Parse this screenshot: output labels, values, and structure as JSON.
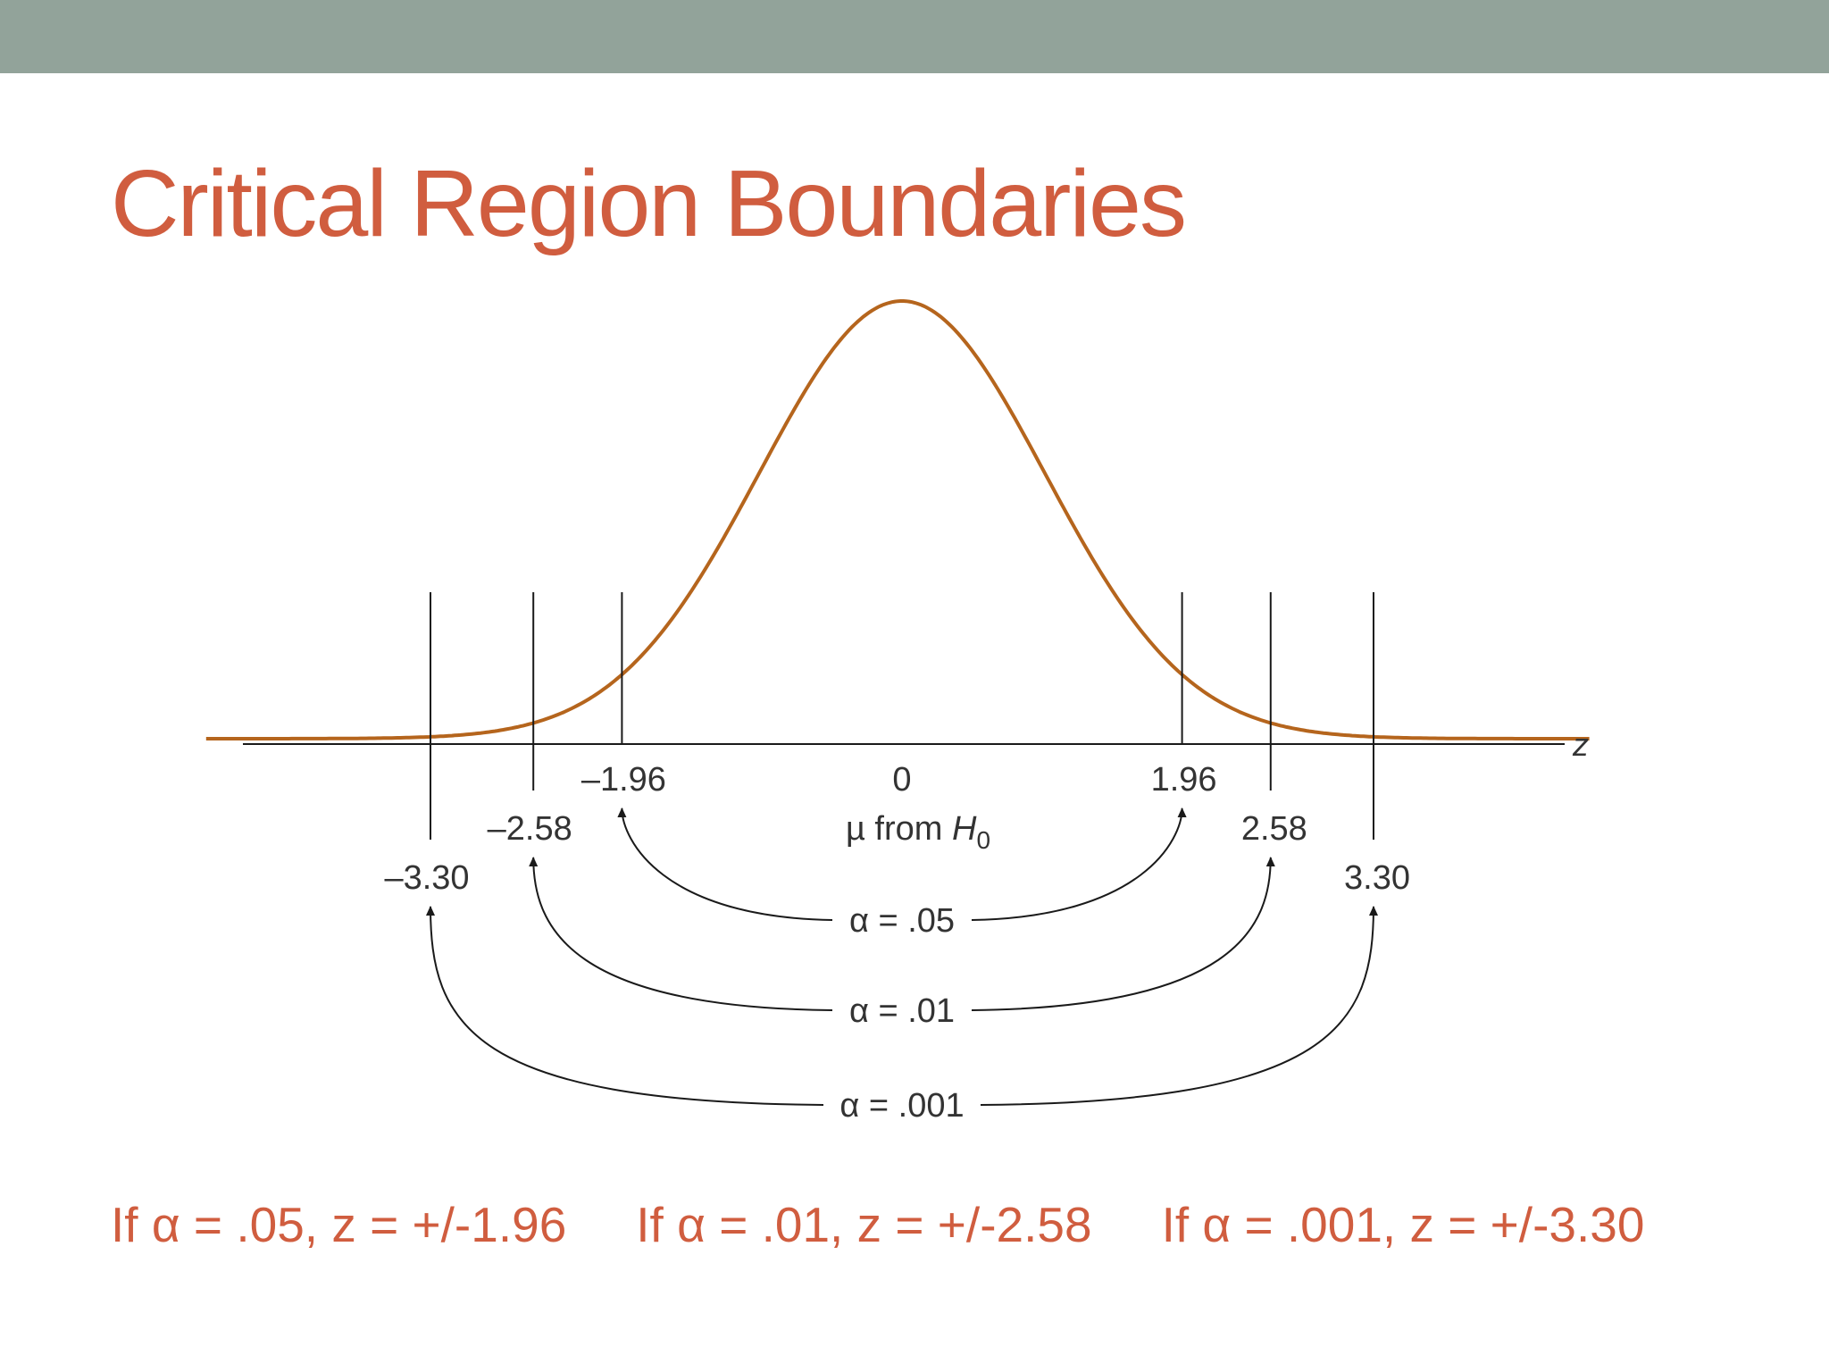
{
  "colors": {
    "top_bar": "#92a39a",
    "title": "#d05d3f",
    "curve": "#b5651d",
    "ink": "#1a1a1a",
    "notes": "#d05d3f"
  },
  "title": "Critical Region Boundaries",
  "diagram": {
    "axis_label": "z",
    "center_label": "0",
    "mu_label_prefix": "µ from ",
    "mu_label_var": "H",
    "mu_label_sub": "0",
    "boundaries": [
      {
        "alpha": ".05",
        "left_label": "–1.96",
        "right_label": "1.96",
        "z": 1.96,
        "alpha_label": "α = .05"
      },
      {
        "alpha": ".01",
        "left_label": "–2.58",
        "right_label": "2.58",
        "z": 2.58,
        "alpha_label": "α = .01"
      },
      {
        "alpha": ".001",
        "left_label": "–3.30",
        "right_label": "3.30",
        "z": 3.3,
        "alpha_label": "α = .001"
      }
    ]
  },
  "footer_notes": [
    "If α = .05, z = +/-1.96",
    "If α = .01, z = +/-2.58",
    "If α = .001, z = +/-3.30"
  ]
}
